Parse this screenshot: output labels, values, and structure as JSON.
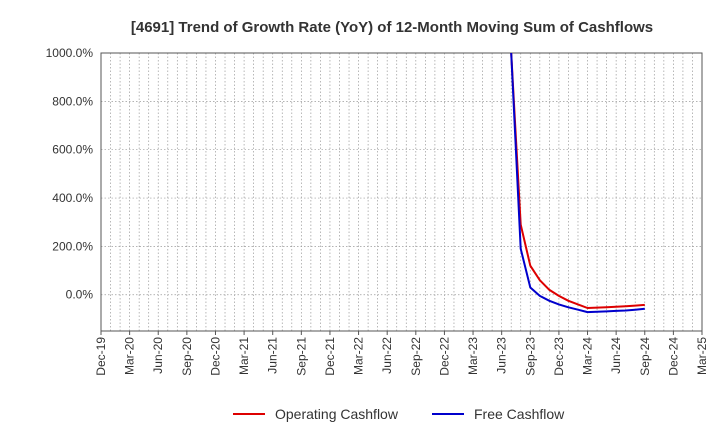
{
  "chart_data": {
    "type": "line",
    "title": "[4691]  Trend of Growth Rate (YoY) of 12-Month Moving Sum of Cashflows",
    "xlabel": "",
    "ylabel": "",
    "x_ticks": [
      "Dec-19",
      "Mar-20",
      "Jun-20",
      "Sep-20",
      "Dec-20",
      "Mar-21",
      "Jun-21",
      "Sep-21",
      "Dec-21",
      "Mar-22",
      "Jun-22",
      "Sep-22",
      "Dec-22",
      "Mar-23",
      "Jun-23",
      "Sep-23",
      "Dec-23",
      "Mar-24",
      "Jun-24",
      "Sep-24",
      "Dec-24",
      "Mar-25"
    ],
    "xlim": [
      "Dec-19",
      "Mar-25"
    ],
    "y_ticks": [
      0,
      200,
      400,
      600,
      800,
      1000
    ],
    "y_tick_labels": [
      "0.0%",
      "200.0%",
      "400.0%",
      "600.0%",
      "800.0%",
      "1000.0%"
    ],
    "ylim": [
      -150,
      1000
    ],
    "grid": true,
    "legend_position": "bottom-center",
    "series": [
      {
        "name": "Operating Cashflow",
        "color": "#dd0000",
        "points": [
          {
            "x": "Jul-23",
            "y": 1000
          },
          {
            "x": "Aug-23",
            "y": 290
          },
          {
            "x": "Sep-23",
            "y": 120
          },
          {
            "x": "Oct-23",
            "y": 60
          },
          {
            "x": "Nov-23",
            "y": 20
          },
          {
            "x": "Dec-23",
            "y": -5
          },
          {
            "x": "Jan-24",
            "y": -25
          },
          {
            "x": "Feb-24",
            "y": -40
          },
          {
            "x": "Mar-24",
            "y": -55
          },
          {
            "x": "Apr-24",
            "y": -53
          },
          {
            "x": "May-24",
            "y": -52
          },
          {
            "x": "Jun-24",
            "y": -50
          },
          {
            "x": "Jul-24",
            "y": -48
          },
          {
            "x": "Aug-24",
            "y": -45
          },
          {
            "x": "Sep-24",
            "y": -42
          }
        ]
      },
      {
        "name": "Free Cashflow",
        "color": "#0000cc",
        "points": [
          {
            "x": "Jul-23",
            "y": 1000
          },
          {
            "x": "Aug-23",
            "y": 190
          },
          {
            "x": "Sep-23",
            "y": 30
          },
          {
            "x": "Oct-23",
            "y": -5
          },
          {
            "x": "Nov-23",
            "y": -25
          },
          {
            "x": "Dec-23",
            "y": -40
          },
          {
            "x": "Jan-24",
            "y": -52
          },
          {
            "x": "Feb-24",
            "y": -62
          },
          {
            "x": "Mar-24",
            "y": -72
          },
          {
            "x": "Apr-24",
            "y": -70
          },
          {
            "x": "May-24",
            "y": -69
          },
          {
            "x": "Jun-24",
            "y": -67
          },
          {
            "x": "Jul-24",
            "y": -65
          },
          {
            "x": "Aug-24",
            "y": -62
          },
          {
            "x": "Sep-24",
            "y": -58
          }
        ]
      }
    ]
  }
}
